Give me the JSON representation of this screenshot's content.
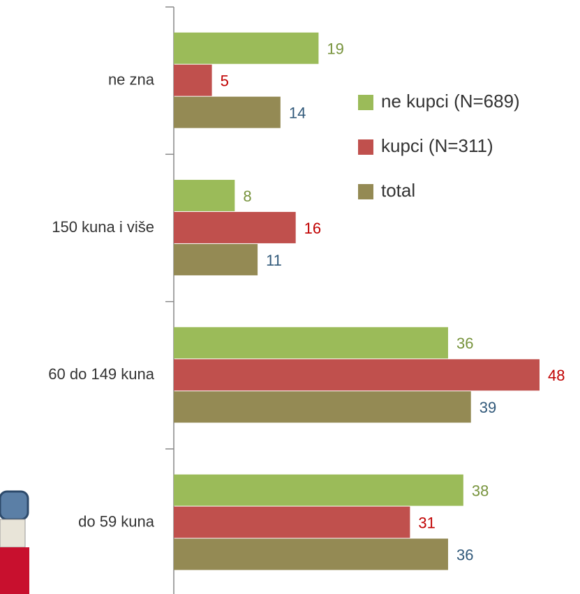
{
  "chart_data": {
    "type": "barh",
    "categories": [
      "ne zna",
      "150 kuna i više",
      "60 do 149 kuna",
      "do 59 kuna"
    ],
    "series": [
      {
        "name": "ne kupci (N=689)",
        "color": "#9bbb59",
        "label_color": "#77933c",
        "values": [
          19,
          8,
          36,
          38
        ]
      },
      {
        "name": "kupci (N=311)",
        "color": "#c0504d",
        "label_color": "#c00000",
        "values": [
          5,
          16,
          48,
          31
        ]
      },
      {
        "name": "total",
        "color": "#948a54",
        "label_color": "#31597a",
        "values": [
          14,
          11,
          39,
          36
        ]
      }
    ],
    "legend": "right"
  }
}
